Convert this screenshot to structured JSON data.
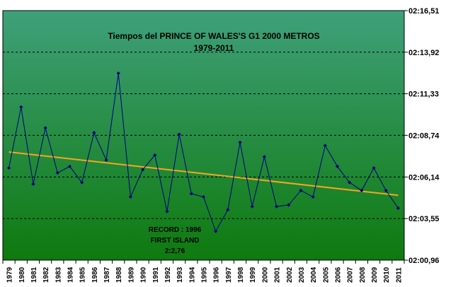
{
  "chart_data": {
    "type": "line",
    "title": "Tiempos del PRINCE OF WALES'S G1 2000 METROS",
    "subtitle": "1979-2011",
    "xlabel": "",
    "ylabel": "",
    "y_unit": "m:ss.cc",
    "grid": true,
    "legend": "none",
    "annotation": [
      "RECORD : 1996",
      "FIRST ISLAND",
      "2:2,76"
    ],
    "categories": [
      "1979",
      "1980",
      "1981",
      "1982",
      "1983",
      "1984",
      "1985",
      "1986",
      "1987",
      "1988",
      "1989",
      "1990",
      "1991",
      "1992",
      "1993",
      "1994",
      "1995",
      "1996",
      "1997",
      "1998",
      "1999",
      "2000",
      "2001",
      "2002",
      "2003",
      "2004",
      "2005",
      "2006",
      "2007",
      "2008",
      "2009",
      "2010",
      "2011"
    ],
    "ylim_seconds": [
      120.96,
      136.51
    ],
    "yticks": [
      {
        "label": "02:00,96",
        "value": 120.96
      },
      {
        "label": "02:03,55",
        "value": 123.55
      },
      {
        "label": "02:06,14",
        "value": 126.14
      },
      {
        "label": "02:08,74",
        "value": 128.74
      },
      {
        "label": "02:11,33",
        "value": 131.33
      },
      {
        "label": "02:13,92",
        "value": 133.92
      },
      {
        "label": "02:16,51",
        "value": 136.51
      }
    ],
    "series": [
      {
        "values_seconds": [
          126.7,
          130.5,
          125.7,
          129.2,
          126.4,
          126.8,
          125.8,
          128.9,
          127.2,
          132.6,
          124.9,
          126.6,
          127.5,
          124.0,
          128.8,
          125.1,
          124.9,
          122.76,
          124.1,
          128.3,
          124.3,
          127.4,
          124.3,
          124.4,
          125.3,
          124.9,
          128.1,
          126.8,
          125.8,
          125.3,
          126.7,
          125.3,
          124.2
        ],
        "color": "#000080"
      }
    ],
    "trendline": {
      "start_seconds": 127.7,
      "end_seconds": 125.0,
      "color": "#f5a623"
    },
    "colors": {
      "bg_top": "#3fa07a",
      "bg_bottom": "#0e7a0e",
      "grid": "#000000"
    }
  }
}
